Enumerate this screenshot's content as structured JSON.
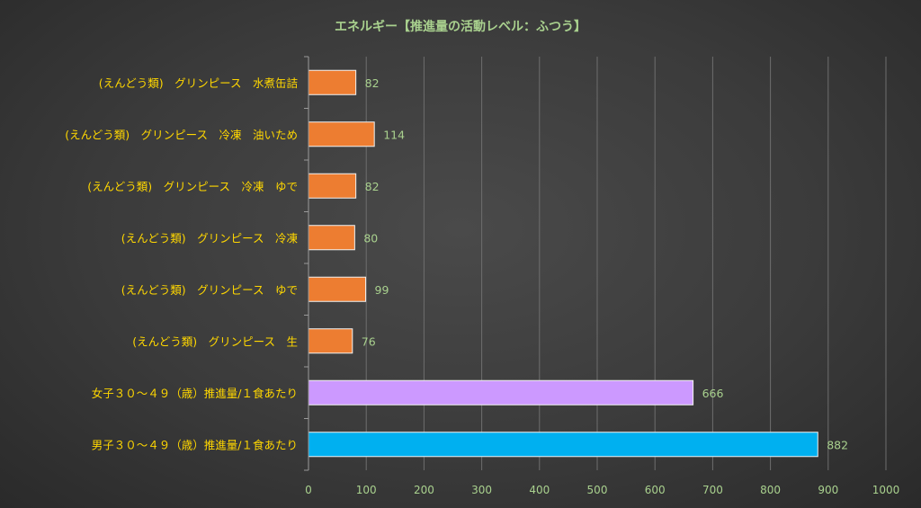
{
  "chart_data": {
    "type": "bar",
    "orientation": "horizontal",
    "title": "エネルギー【推進量の活動レベル：ふつう】",
    "categories": [
      "(えんどう類)　グリンピース　水煮缶詰",
      "(えんどう類)　グリンピース　冷凍　油いため",
      "(えんどう類)　グリンピース　冷凍　ゆで",
      "(えんどう類)　グリンピース　冷凍",
      "(えんどう類)　グリンピース　ゆで",
      "(えんどう類)　グリンピース　生",
      "女子３０～４９（歳）推進量/１食あたり",
      "男子３０～４９（歳）推進量/１食あたり"
    ],
    "values": [
      82,
      114,
      82,
      80,
      99,
      76,
      666,
      882
    ],
    "data_labels": [
      "82",
      "114",
      "82",
      "80",
      "99",
      "76",
      "666",
      "882"
    ],
    "bar_colors": [
      "#ED7D31",
      "#ED7D31",
      "#ED7D31",
      "#ED7D31",
      "#ED7D31",
      "#ED7D31",
      "#CC99FF",
      "#00B0F0"
    ],
    "xlim": [
      0,
      1000
    ],
    "xticks": [
      0,
      100,
      200,
      300,
      400,
      500,
      600,
      700,
      800,
      900,
      1000
    ],
    "grid": true,
    "legend": "none",
    "colors": {
      "title": "#A9D18E",
      "category_labels": "#FFD700",
      "tick_labels": "#A9D18E",
      "data_labels": "#A9D18E",
      "gridlines": "#6E6E6E",
      "axis": "#9A9A9A"
    }
  }
}
